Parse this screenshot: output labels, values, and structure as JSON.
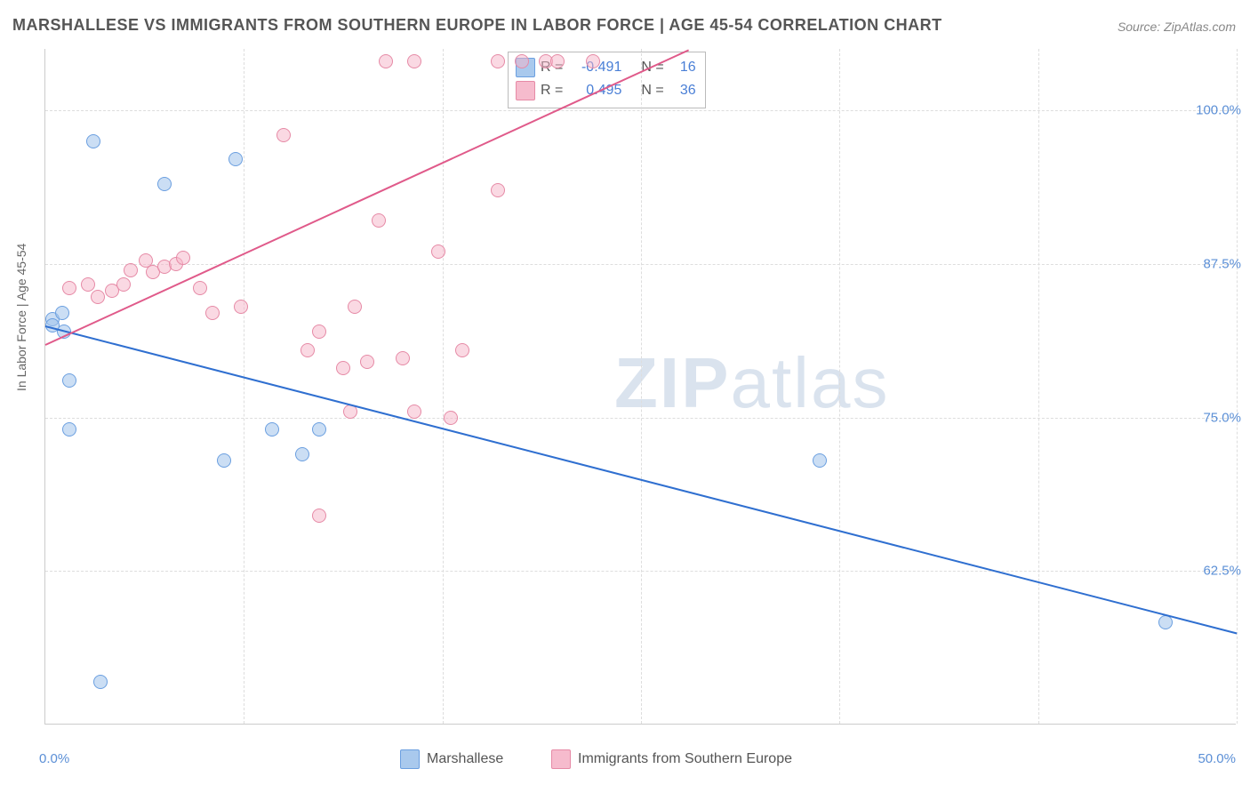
{
  "title": "MARSHALLESE VS IMMIGRANTS FROM SOUTHERN EUROPE IN LABOR FORCE | AGE 45-54 CORRELATION CHART",
  "source": "Source: ZipAtlas.com",
  "ylabel": "In Labor Force | Age 45-54",
  "watermark1": "ZIP",
  "watermark2": "atlas",
  "yticks": [
    "100.0%",
    "87.5%",
    "75.0%",
    "62.5%"
  ],
  "xticks": {
    "left": "0.0%",
    "right": "50.0%"
  },
  "legend": {
    "s1": "Marshallese",
    "s2": "Immigrants from Southern Europe"
  },
  "corr": {
    "s1": {
      "r_label": "R =",
      "r": "-0.491",
      "n_label": "N =",
      "n": "16"
    },
    "s2": {
      "r_label": "R =",
      "r": "0.495",
      "n_label": "N =",
      "n": "36"
    }
  },
  "chart": {
    "type": "scatter-correlation",
    "xlim": [
      0,
      50
    ],
    "ylim": [
      50,
      105
    ],
    "ytick_vals": [
      100,
      87.5,
      75,
      62.5
    ],
    "xtick_vals": [
      0,
      8.33,
      16.67,
      25,
      33.33,
      41.67,
      50
    ],
    "colors": {
      "blue_line": "#2f6fd0",
      "blue_fill": "#a0c3eb",
      "blue_stroke": "#6b9fe0",
      "pink_line": "#e05a8a",
      "pink_fill": "#f5b4c8",
      "pink_stroke": "#e68aa6",
      "grid": "#dddddd",
      "axis": "#cccccc",
      "tick_text": "#5b8fd6",
      "title_text": "#555555",
      "background": "#ffffff"
    },
    "marker_size": 16,
    "title_fontsize": 18,
    "tick_fontsize": 15,
    "series_blue": {
      "trend": {
        "x1": 0,
        "y1": 82.5,
        "x2": 50,
        "y2": 57.5
      },
      "points": [
        [
          0.3,
          83
        ],
        [
          0.3,
          82.5
        ],
        [
          0.8,
          82
        ],
        [
          2.0,
          97.5
        ],
        [
          1.0,
          78
        ],
        [
          1.0,
          74
        ],
        [
          5.0,
          94
        ],
        [
          8.0,
          96
        ],
        [
          7.5,
          71.5
        ],
        [
          9.5,
          74
        ],
        [
          10.8,
          72
        ],
        [
          11.5,
          74
        ],
        [
          32.5,
          71.5
        ],
        [
          47,
          58.3
        ],
        [
          2.3,
          53.5
        ],
        [
          0.7,
          83.5
        ]
      ]
    },
    "series_pink": {
      "trend": {
        "x1": 0,
        "y1": 81,
        "x2": 27,
        "y2": 105
      },
      "points": [
        [
          1,
          85.5
        ],
        [
          1.8,
          85.8
        ],
        [
          2.2,
          84.8
        ],
        [
          2.8,
          85.3
        ],
        [
          3.3,
          85.8
        ],
        [
          3.6,
          87
        ],
        [
          4.2,
          87.8
        ],
        [
          4.5,
          86.8
        ],
        [
          5,
          87.3
        ],
        [
          5.5,
          87.5
        ],
        [
          5.8,
          88
        ],
        [
          6.5,
          85.5
        ],
        [
          7,
          83.5
        ],
        [
          8.2,
          84
        ],
        [
          10,
          98
        ],
        [
          11,
          80.5
        ],
        [
          11.5,
          82
        ],
        [
          11.5,
          67
        ],
        [
          12.5,
          79
        ],
        [
          12.8,
          75.5
        ],
        [
          13,
          84
        ],
        [
          13.5,
          79.5
        ],
        [
          14,
          91
        ],
        [
          14.3,
          104
        ],
        [
          15,
          79.8
        ],
        [
          15.5,
          75.5
        ],
        [
          15.5,
          104
        ],
        [
          16.5,
          88.5
        ],
        [
          17,
          75
        ],
        [
          17.5,
          80.5
        ],
        [
          19,
          104
        ],
        [
          19,
          93.5
        ],
        [
          20,
          104
        ],
        [
          21,
          104
        ],
        [
          21.5,
          104
        ],
        [
          23,
          104
        ]
      ]
    }
  }
}
